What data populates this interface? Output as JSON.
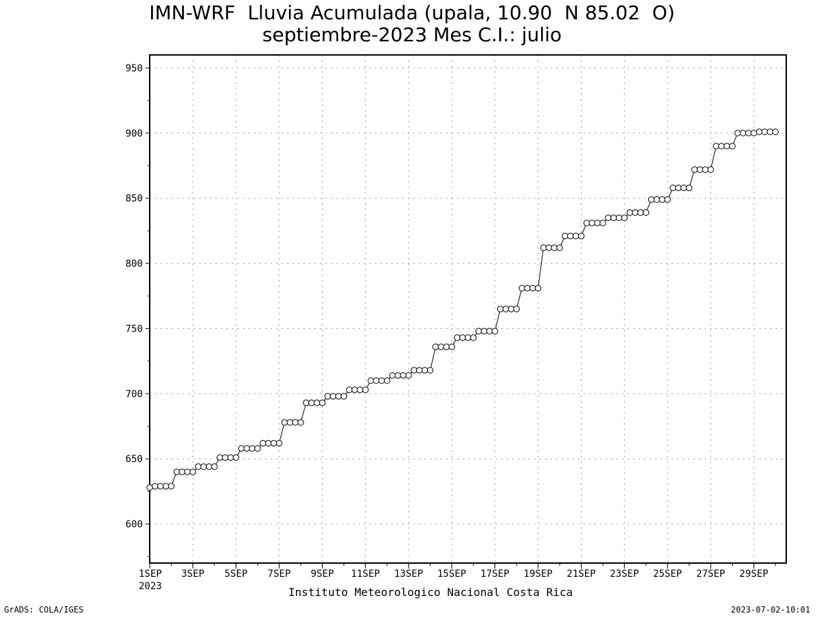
{
  "chart_data": {
    "type": "line",
    "title": "IMN-WRF  Lluvia Acumulada (upala, 10.90  N 85.02  O)",
    "subtitle": "septiembre-2023 Mes C.I.: julio",
    "xlabel": "",
    "ylabel": "",
    "ylim": [
      570,
      960
    ],
    "xlim": [
      1,
      30.5
    ],
    "yticks": [
      600,
      650,
      700,
      750,
      800,
      850,
      900,
      950
    ],
    "ytick_labels": [
      "600",
      "650",
      "700",
      "750",
      "800",
      "850",
      "900",
      "950"
    ],
    "xticks": [
      1,
      3,
      5,
      7,
      9,
      11,
      13,
      15,
      17,
      19,
      21,
      23,
      25,
      27,
      29
    ],
    "xtick_labels": [
      "1SEP",
      "3SEP",
      "5SEP",
      "7SEP",
      "9SEP",
      "11SEP",
      "13SEP",
      "15SEP",
      "17SEP",
      "19SEP",
      "21SEP",
      "23SEP",
      "25SEP",
      "27SEP",
      "29SEP"
    ],
    "xtick_year": "2023",
    "grid": true,
    "marker": "open-circle",
    "series": [
      {
        "values_every_6h": [
          628,
          629,
          629,
          629,
          629,
          640,
          640,
          640,
          640,
          644,
          644,
          644,
          644,
          651,
          651,
          651,
          651,
          658,
          658,
          658,
          658,
          662,
          662,
          662,
          662,
          678,
          678,
          678,
          678,
          693,
          693,
          693,
          693,
          698,
          698,
          698,
          698,
          703,
          703,
          703,
          703,
          710,
          710,
          710,
          710,
          714,
          714,
          714,
          714,
          718,
          718,
          718,
          718,
          736,
          736,
          736,
          736,
          743,
          743,
          743,
          743,
          748,
          748,
          748,
          748,
          765,
          765,
          765,
          765,
          781,
          781,
          781,
          781,
          812,
          812,
          812,
          812,
          821,
          821,
          821,
          821,
          831,
          831,
          831,
          831,
          835,
          835,
          835,
          835,
          839,
          839,
          839,
          839,
          849,
          849,
          849,
          849,
          858,
          858,
          858,
          858,
          872,
          872,
          872,
          872,
          890,
          890,
          890,
          890,
          900,
          900,
          900,
          900,
          901,
          901,
          901,
          901
        ]
      }
    ]
  },
  "credit": "Instituto Meteorologico Nacional Costa Rica",
  "footer": {
    "left": "GrADS: COLA/IGES",
    "right": "2023-07-02-10:01"
  }
}
